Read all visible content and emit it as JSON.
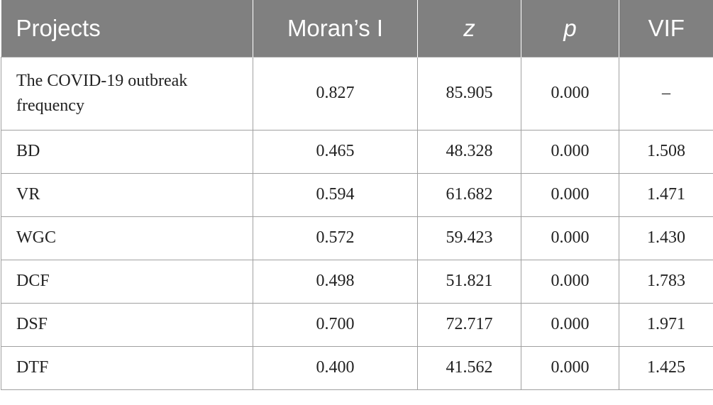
{
  "table": {
    "headers": [
      "Projects",
      "Moran’s I",
      "z",
      "p",
      "VIF"
    ],
    "rows": [
      [
        "The COVID-19 outbreak frequency",
        "0.827",
        "85.905",
        "0.000",
        "–"
      ],
      [
        "BD",
        "0.465",
        "48.328",
        "0.000",
        "1.508"
      ],
      [
        "VR",
        "0.594",
        "61.682",
        "0.000",
        "1.471"
      ],
      [
        "WGC",
        "0.572",
        "59.423",
        "0.000",
        "1.430"
      ],
      [
        "DCF",
        "0.498",
        "51.821",
        "0.000",
        "1.783"
      ],
      [
        "DSF",
        "0.700",
        "72.717",
        "0.000",
        "1.971"
      ],
      [
        "DTF",
        "0.400",
        "41.562",
        "0.000",
        "1.425"
      ]
    ]
  },
  "colors": {
    "header_bg": "#808080",
    "header_text": "#ffffff",
    "border": "#a0a0a0",
    "cell_text": "#222222"
  }
}
